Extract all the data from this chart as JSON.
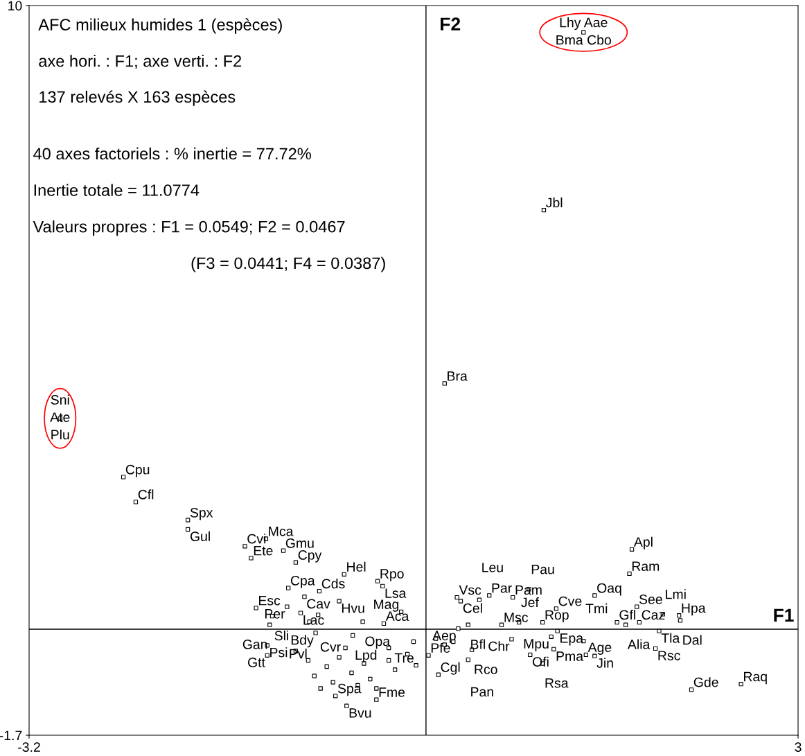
{
  "chart_data": {
    "type": "scatter",
    "title": "AFC milieux humides 1 (espèces)",
    "annotations": [
      "axe hori. : F1; axe verti. : F2",
      "137 relevés X 163 espèces",
      "40 axes factoriels : % inertie = 77.72%",
      "Inertie totale = 11.0774",
      "Valeurs propres : F1 = 0.0549; F2 = 0.0467",
      "(F3 = 0.0441; F4 = 0.0387)",
      {
        "text": "Lhy Aae\nBma Cbo",
        "x": 1.27,
        "y": 9.57
      },
      {
        "text": "Sni\nAte\nPlu",
        "x": -2.95,
        "y": 3.38
      },
      {
        "text": "Jbl",
        "x": 0.95,
        "y": 6.72
      },
      {
        "text": "Bra",
        "x": 0.15,
        "y": 3.94
      },
      {
        "text": "Cpu",
        "x": -2.44,
        "y": 2.44
      },
      {
        "text": "Cfl",
        "x": -2.34,
        "y": 2.04
      },
      {
        "text": "Spx",
        "x": -1.92,
        "y": 1.75
      },
      {
        "text": "Gul",
        "x": -1.92,
        "y": 1.6
      },
      {
        "text": "Cvi",
        "x": -1.46,
        "y": 1.33
      },
      {
        "text": "Mca",
        "x": -1.29,
        "y": 1.45
      },
      {
        "text": "Ete",
        "x": -1.41,
        "y": 1.14
      },
      {
        "text": "Gmu",
        "x": -1.15,
        "y": 1.26
      },
      {
        "text": "Cpy",
        "x": -1.05,
        "y": 1.07
      },
      {
        "text": "Hel",
        "x": -0.66,
        "y": 0.88
      },
      {
        "text": "Rpo",
        "x": -0.39,
        "y": 0.77
      },
      {
        "text": "Lsa",
        "x": -0.35,
        "y": 0.69
      },
      {
        "text": "Cpa",
        "x": -1.11,
        "y": 0.66
      },
      {
        "text": "Cds",
        "x": -0.86,
        "y": 0.61
      },
      {
        "text": "Cav",
        "x": -0.98,
        "y": 0.52
      },
      {
        "text": "Hvu",
        "x": -0.7,
        "y": 0.45
      },
      {
        "text": "Esc",
        "x": -1.37,
        "y": 0.34
      },
      {
        "text": "Per",
        "x": -1.12,
        "y": 0.36
      },
      {
        "text": "Sli",
        "x": -1.24,
        "y": 0.21
      },
      {
        "text": "Lac",
        "x": -1.01,
        "y": 0.26
      },
      {
        "text": "Cvr",
        "x": -0.87,
        "y": 0.23
      },
      {
        "text": "Gan",
        "x": -1.26,
        "y": 0.07
      },
      {
        "text": "Pvl",
        "x": -0.94,
        "y": 0.12
      },
      {
        "text": "Opa",
        "x": -0.51,
        "y": 0.12
      },
      {
        "text": "Aca",
        "x": -0.34,
        "y": 0.09
      },
      {
        "text": "Mag",
        "x": -0.2,
        "y": 0.28
      },
      {
        "text": "Bdy",
        "x": -0.89,
        "y": -0.06
      },
      {
        "text": "Lpd",
        "x": -0.59,
        "y": -0.1
      },
      {
        "text": "Psi",
        "x": -1.28,
        "y": -0.26
      },
      {
        "text": "Gtt",
        "x": -1.28,
        "y": -0.42
      },
      {
        "text": "Spa",
        "x": -0.73,
        "y": -1.07
      },
      {
        "text": "Bvu",
        "x": -0.64,
        "y": -1.23
      },
      {
        "text": "Fme",
        "x": -0.4,
        "y": -1.13
      },
      {
        "text": "Tre",
        "x": -0.08,
        "y": -0.58
      },
      {
        "text": "Cgl",
        "x": 0.1,
        "y": -0.73
      },
      {
        "text": "Pfe",
        "x": 0.02,
        "y": -0.42
      },
      {
        "text": "Vsc",
        "x": 0.25,
        "y": 0.51
      },
      {
        "text": "Cel",
        "x": 0.28,
        "y": 0.45
      },
      {
        "text": "Leu",
        "x": 0.43,
        "y": 0.47
      },
      {
        "text": "Par",
        "x": 0.51,
        "y": 0.54
      },
      {
        "text": "Pam",
        "x": 0.7,
        "y": 0.51
      },
      {
        "text": "Pau",
        "x": 0.83,
        "y": 0.64
      },
      {
        "text": "Oaq",
        "x": 1.36,
        "y": 0.54
      },
      {
        "text": "Cve",
        "x": 1.05,
        "y": 0.33
      },
      {
        "text": "Ram",
        "x": 1.64,
        "y": 0.89
      },
      {
        "text": "Apl",
        "x": 1.66,
        "y": 1.28
      },
      {
        "text": "See",
        "x": 1.7,
        "y": 0.36
      },
      {
        "text": "Gfl",
        "x": 1.54,
        "y": 0.11
      },
      {
        "text": "Alia",
        "x": 1.61,
        "y": 0.07
      },
      {
        "text": "Caz",
        "x": 1.72,
        "y": 0.11
      },
      {
        "text": "Lmi",
        "x": 1.91,
        "y": 0.24
      },
      {
        "text": "Hpa",
        "x": 2.04,
        "y": 0.22
      },
      {
        "text": "Dal",
        "x": 2.05,
        "y": 0.14
      },
      {
        "text": "Tla",
        "x": 1.88,
        "y": -0.03
      },
      {
        "text": "Msc",
        "x": 0.61,
        "y": 0.07
      },
      {
        "text": "Jef",
        "x": 0.75,
        "y": 0.11
      },
      {
        "text": "Rop",
        "x": 0.94,
        "y": 0.11
      },
      {
        "text": "Epa",
        "x": 1.06,
        "y": -0.03
      },
      {
        "text": "Rsc",
        "x": 1.85,
        "y": -0.31
      },
      {
        "text": "Gde",
        "x": 2.14,
        "y": -0.97
      },
      {
        "text": "Raq",
        "x": 2.54,
        "y": -0.88
      },
      {
        "text": "Mpu",
        "x": 1.01,
        "y": -0.12
      },
      {
        "text": "Age",
        "x": 1.29,
        "y": -0.41
      },
      {
        "text": "Ofi",
        "x": 0.84,
        "y": -0.41
      },
      {
        "text": "Chr",
        "x": 0.69,
        "y": -0.16
      },
      {
        "text": "Rco",
        "x": 0.37,
        "y": -0.33
      },
      {
        "text": "Pan",
        "x": 0.34,
        "y": -0.49
      },
      {
        "text": "Rsa",
        "x": 0.94,
        "y": -0.55
      },
      {
        "text": "Pma",
        "x": 1.03,
        "y": -0.32
      },
      {
        "text": "Jin",
        "x": 1.36,
        "y": -0.43
      },
      {
        "text": "Tmi",
        "x": 1.27,
        "y": -0.19
      },
      {
        "text": "Bfl",
        "x": 0.34,
        "y": 0.07
      },
      {
        "text": "Aep",
        "x": 0.26,
        "y": 0.01
      }
    ],
    "x": [
      1.27,
      -2.95,
      0.95,
      0.15,
      -2.44,
      -2.34,
      -1.92,
      -1.92,
      -1.46,
      -1.29,
      -1.41,
      -1.15,
      -1.05,
      -0.66,
      -0.39,
      -0.35,
      -1.11,
      -0.86,
      -0.98,
      -0.7,
      -1.37,
      -1.12,
      -1.24,
      -1.01,
      -0.87,
      -1.26,
      -0.94,
      -0.51,
      -0.34,
      -0.2,
      -0.89,
      -0.59,
      -1.28,
      -1.28,
      -0.73,
      -0.64,
      -0.4,
      -0.08,
      0.1,
      0.02,
      0.25,
      0.28,
      0.43,
      0.51,
      0.7,
      0.83,
      1.36,
      1.05,
      1.64,
      1.66,
      1.7,
      1.54,
      1.61,
      1.72,
      1.91,
      2.04,
      2.05,
      1.88,
      0.61,
      0.75,
      0.94,
      1.06,
      1.85,
      2.14,
      2.54,
      1.01,
      1.29,
      0.84,
      0.69,
      0.37,
      0.34,
      0.94,
      1.03,
      1.36,
      1.27,
      0.34,
      0.26,
      -1.05,
      -0.95,
      -0.8,
      -0.7,
      -0.6,
      -0.5,
      -0.45,
      -0.3,
      -0.25,
      -0.15,
      -0.1,
      -0.9,
      -0.75,
      -0.55,
      -0.4,
      -0.3,
      -0.85,
      -0.65,
      0.08,
      0.15,
      0.22
    ],
    "values": [
      9.57,
      3.38,
      6.72,
      3.94,
      2.44,
      2.04,
      1.75,
      1.6,
      1.33,
      1.45,
      1.14,
      1.26,
      1.07,
      0.88,
      0.77,
      0.69,
      0.66,
      0.61,
      0.52,
      0.45,
      0.34,
      0.36,
      0.21,
      0.26,
      0.23,
      0.07,
      0.12,
      0.12,
      0.09,
      0.28,
      -0.06,
      -0.1,
      -0.26,
      -0.42,
      -1.07,
      -1.23,
      -1.13,
      -0.58,
      -0.73,
      -0.42,
      0.51,
      0.45,
      0.47,
      0.54,
      0.51,
      0.64,
      0.54,
      0.33,
      0.89,
      1.28,
      0.36,
      0.11,
      0.07,
      0.11,
      0.24,
      0.22,
      0.14,
      -0.03,
      0.07,
      0.11,
      0.11,
      -0.03,
      -0.31,
      -0.97,
      -0.88,
      -0.12,
      -0.41,
      -0.41,
      -0.16,
      -0.33,
      -0.49,
      -0.55,
      -0.32,
      -0.43,
      -0.19,
      0.07,
      0.01,
      -0.35,
      -0.5,
      -0.6,
      -0.45,
      -0.7,
      -0.55,
      -0.8,
      -0.5,
      -0.65,
      -0.4,
      -0.2,
      -0.75,
      -0.85,
      -0.9,
      -0.95,
      -0.3,
      -0.95,
      -0.3,
      -0.15,
      -0.25,
      -0.2
    ],
    "color": "#000000",
    "marker": "square",
    "xlim": [
      -3.2,
      3
    ],
    "ylim": [
      -1.7,
      10
    ],
    "xticks": [
      -3.2,
      3
    ],
    "yticks": [
      -1.7,
      10
    ],
    "grid": false,
    "legend": false,
    "ref_lines": [
      {
        "axis": "x",
        "value": 0,
        "label": "F2"
      },
      {
        "axis": "y",
        "value": 0,
        "label": "F1"
      }
    ]
  }
}
